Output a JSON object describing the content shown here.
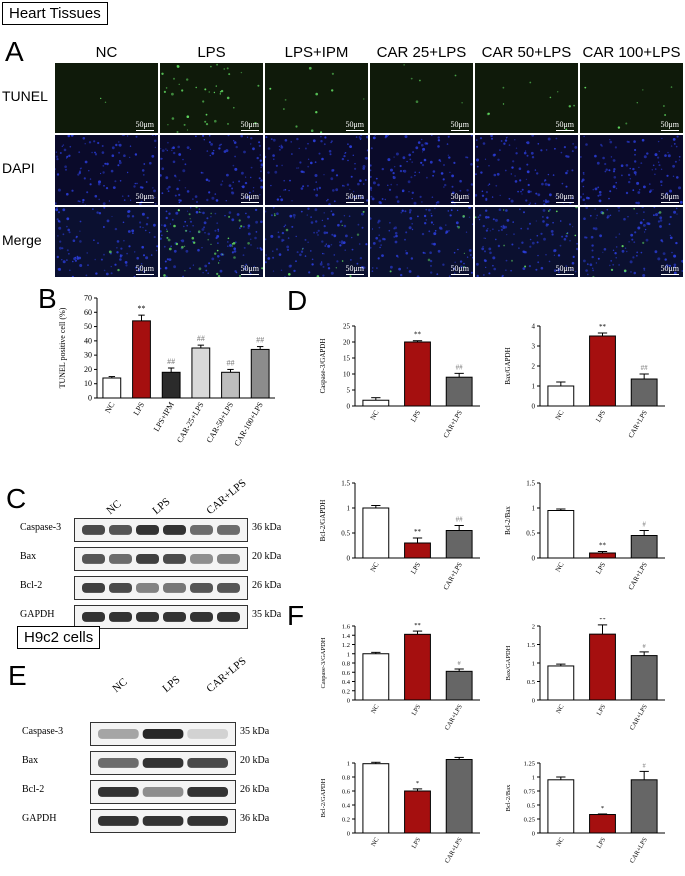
{
  "figure_title": "Heart Tissues",
  "h9c2_title": "H9c2 cells",
  "panel_letters": {
    "A": "A",
    "B": "B",
    "C": "C",
    "D": "D",
    "E": "E",
    "F": "F"
  },
  "panelA": {
    "columns": [
      "NC",
      "LPS",
      "LPS+IPM",
      "CAR 25+LPS",
      "CAR 50+LPS",
      "CAR 100+LPS"
    ],
    "rows": [
      "TUNEL",
      "DAPI",
      "Merge"
    ],
    "scale_bar": "50μm",
    "colors": {
      "tunel": "#0f1a0a",
      "dapi": "#0a0a2a",
      "merge": "#0b1030"
    }
  },
  "panelC": {
    "lanes": [
      "NC",
      "LPS",
      "CAR+LPS"
    ],
    "bands": [
      {
        "name": "Caspase-3",
        "size": "36 kDa"
      },
      {
        "name": "Bax",
        "size": "20 kDa"
      },
      {
        "name": "Bcl-2",
        "size": "26 kDa"
      },
      {
        "name": "GAPDH",
        "size": "35 kDa"
      }
    ]
  },
  "panelE": {
    "lanes": [
      "NC",
      "LPS",
      "CAR+LPS"
    ],
    "bands": [
      {
        "name": "Caspase-3",
        "size": "35 kDa"
      },
      {
        "name": "Bax",
        "size": "20 kDa"
      },
      {
        "name": "Bcl-2",
        "size": "26 kDa"
      },
      {
        "name": "GAPDH",
        "size": "36 kDa"
      }
    ]
  },
  "chart_data": [
    {
      "id": "B",
      "type": "bar",
      "ylabel": "TUNEL positive cell (%)",
      "categories": [
        "NC",
        "LPS",
        "LPS+IPM",
        "CAR-25+LPS",
        "CAR-50+LPS",
        "CAR-100+LPS"
      ],
      "values": [
        14,
        54,
        18,
        35,
        18,
        34
      ],
      "errors": [
        1,
        4,
        3,
        2,
        2,
        2
      ],
      "sig": [
        "",
        "**",
        "##",
        "##",
        "##",
        "##"
      ],
      "colors": [
        "#ffffff",
        "#a50f0f",
        "#2b2b2b",
        "#d9d9d9",
        "#bdbdbd",
        "#8c8c8c"
      ],
      "ylim": [
        0,
        70
      ],
      "yticks": [
        0,
        10,
        20,
        30,
        40,
        50,
        60,
        70
      ]
    },
    {
      "id": "D1",
      "type": "bar",
      "ylabel": "Caspase-3/GAPDH",
      "categories": [
        "NC",
        "LPS",
        "CAR+LPS"
      ],
      "values": [
        1.8,
        20,
        9
      ],
      "errors": [
        0.8,
        0.4,
        1.2
      ],
      "sig": [
        "",
        "**",
        "##"
      ],
      "colors": [
        "#ffffff",
        "#a50f0f",
        "#666666"
      ],
      "ylim": [
        0,
        25
      ],
      "yticks": [
        0,
        5,
        10,
        15,
        20,
        25
      ]
    },
    {
      "id": "D2",
      "type": "bar",
      "ylabel": "Bax/GAPDH",
      "categories": [
        "NC",
        "LPS",
        "CAR+LPS"
      ],
      "values": [
        1.0,
        3.5,
        1.35
      ],
      "errors": [
        0.2,
        0.15,
        0.25
      ],
      "sig": [
        "",
        "**",
        "##"
      ],
      "colors": [
        "#ffffff",
        "#a50f0f",
        "#666666"
      ],
      "ylim": [
        0,
        4
      ],
      "yticks": [
        0,
        1,
        2,
        3,
        4
      ]
    },
    {
      "id": "D3",
      "type": "bar",
      "ylabel": "Bcl-2/GAPDH",
      "categories": [
        "NC",
        "LPS",
        "CAR+LPS"
      ],
      "values": [
        1.0,
        0.3,
        0.55
      ],
      "errors": [
        0.05,
        0.1,
        0.1
      ],
      "sig": [
        "",
        "**",
        "##"
      ],
      "colors": [
        "#ffffff",
        "#a50f0f",
        "#666666"
      ],
      "ylim": [
        0,
        1.5
      ],
      "yticks": [
        0.0,
        0.5,
        1.0,
        1.5
      ]
    },
    {
      "id": "D4",
      "type": "bar",
      "ylabel": "Bcl-2/Bax",
      "categories": [
        "NC",
        "LPS",
        "CAR+LPS"
      ],
      "values": [
        0.95,
        0.1,
        0.45
      ],
      "errors": [
        0.03,
        0.03,
        0.1
      ],
      "sig": [
        "",
        "**",
        "#"
      ],
      "colors": [
        "#ffffff",
        "#a50f0f",
        "#666666"
      ],
      "ylim": [
        0,
        1.5
      ],
      "yticks": [
        0.0,
        0.5,
        1.0,
        1.5
      ]
    },
    {
      "id": "F1",
      "type": "bar",
      "ylabel": "Caspase-3/GAPDH",
      "categories": [
        "NC",
        "LPS",
        "CAR+LPS"
      ],
      "values": [
        1.0,
        1.42,
        0.62
      ],
      "errors": [
        0.03,
        0.07,
        0.05
      ],
      "sig": [
        "",
        "**",
        "#"
      ],
      "colors": [
        "#ffffff",
        "#a50f0f",
        "#666666"
      ],
      "ylim": [
        0,
        1.6
      ],
      "yticks": [
        0.0,
        0.2,
        0.4,
        0.6,
        0.8,
        1.0,
        1.2,
        1.4,
        1.6
      ]
    },
    {
      "id": "F2",
      "type": "bar",
      "ylabel": "Bax/GAPDH",
      "categories": [
        "NC",
        "LPS",
        "CAR+LPS"
      ],
      "values": [
        0.92,
        1.78,
        1.2
      ],
      "errors": [
        0.05,
        0.25,
        0.1
      ],
      "sig": [
        "",
        "**",
        "#"
      ],
      "colors": [
        "#ffffff",
        "#a50f0f",
        "#666666"
      ],
      "ylim": [
        0,
        2.0
      ],
      "yticks": [
        0.0,
        0.5,
        1.0,
        1.5,
        2.0
      ]
    },
    {
      "id": "F3",
      "type": "bar",
      "ylabel": "Bcl-2/GAPDH",
      "categories": [
        "NC",
        "LPS",
        "CAR+LPS"
      ],
      "values": [
        0.99,
        0.6,
        1.05
      ],
      "errors": [
        0.02,
        0.03,
        0.03
      ],
      "sig": [
        "",
        "*",
        "#"
      ],
      "colors": [
        "#ffffff",
        "#a50f0f",
        "#666666"
      ],
      "ylim": [
        0,
        1.0
      ],
      "yticks": [
        0.0,
        0.2,
        0.4,
        0.6,
        0.8,
        1.0
      ]
    },
    {
      "id": "F4",
      "type": "bar",
      "ylabel": "Bcl-2/Bax",
      "categories": [
        "NC",
        "LPS",
        "CAR+LPS"
      ],
      "values": [
        0.95,
        0.33,
        0.95
      ],
      "errors": [
        0.05,
        0.01,
        0.15
      ],
      "sig": [
        "",
        "*",
        "#"
      ],
      "colors": [
        "#ffffff",
        "#a50f0f",
        "#666666"
      ],
      "ylim": [
        0,
        1.25
      ],
      "yticks": [
        0.0,
        0.25,
        0.5,
        0.75,
        1.0,
        1.25
      ]
    }
  ]
}
